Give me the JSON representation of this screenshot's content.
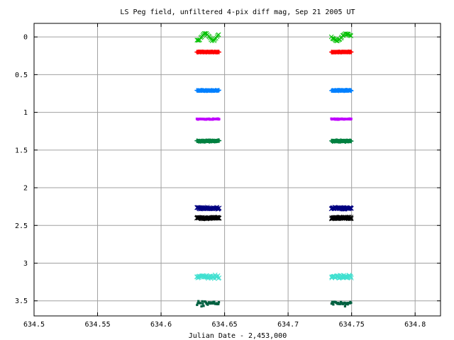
{
  "chart_data": {
    "type": "scatter",
    "title": "LS Peg field, unfiltered 4-pix diff mag, Sep 21 2005 UT",
    "xlabel": "Julian Date - 2,453,000",
    "ylabel": "",
    "xlim": [
      634.5,
      634.82
    ],
    "ylim": [
      3.7,
      -0.18
    ],
    "y_inverted": true,
    "grid": true,
    "legend": "none",
    "x_ticks": [
      634.5,
      634.55,
      634.6,
      634.65,
      634.7,
      634.75,
      634.8
    ],
    "x_tick_labels": [
      "634.5",
      "634.55",
      "634.6",
      "634.65",
      "634.7",
      "634.75",
      "634.8"
    ],
    "y_ticks": [
      0,
      0.5,
      1,
      1.5,
      2,
      2.5,
      3,
      3.5
    ],
    "y_tick_labels": [
      "0",
      "0.5",
      "1",
      "1.5",
      "2",
      "2.5",
      "3",
      "3.5"
    ],
    "observing_runs": [
      {
        "x_start": 634.628,
        "x_end": 634.646
      },
      {
        "x_start": 634.734,
        "x_end": 634.75
      }
    ],
    "series": [
      {
        "color": "#00c000",
        "marker": "x",
        "mean": 0.0,
        "scatter": 0.05,
        "points_per_run": 24
      },
      {
        "color": "#ff0000",
        "marker": "+",
        "mean": 0.2,
        "scatter": 0.006,
        "points_per_run": 60
      },
      {
        "color": "#0080ff",
        "marker": "+",
        "mean": 0.71,
        "scatter": 0.008,
        "points_per_run": 60
      },
      {
        "color": "#c000ff",
        "marker": "square",
        "mean": 1.09,
        "scatter": 0.01,
        "points_per_run": 60
      },
      {
        "color": "#008040",
        "marker": "+",
        "mean": 1.38,
        "scatter": 0.01,
        "points_per_run": 60
      },
      {
        "color": "#000080",
        "marker": "x",
        "mean": 2.27,
        "scatter": 0.02,
        "points_per_run": 50
      },
      {
        "color": "#000000",
        "marker": "x",
        "mean": 2.4,
        "scatter": 0.02,
        "points_per_run": 60
      },
      {
        "color": "#40e0d0",
        "marker": "x",
        "mean": 3.18,
        "scatter": 0.035,
        "points_per_run": 40
      },
      {
        "color": "#006040",
        "marker": "square",
        "mean": 3.53,
        "scatter": 0.05,
        "points_per_run": 30
      }
    ]
  }
}
